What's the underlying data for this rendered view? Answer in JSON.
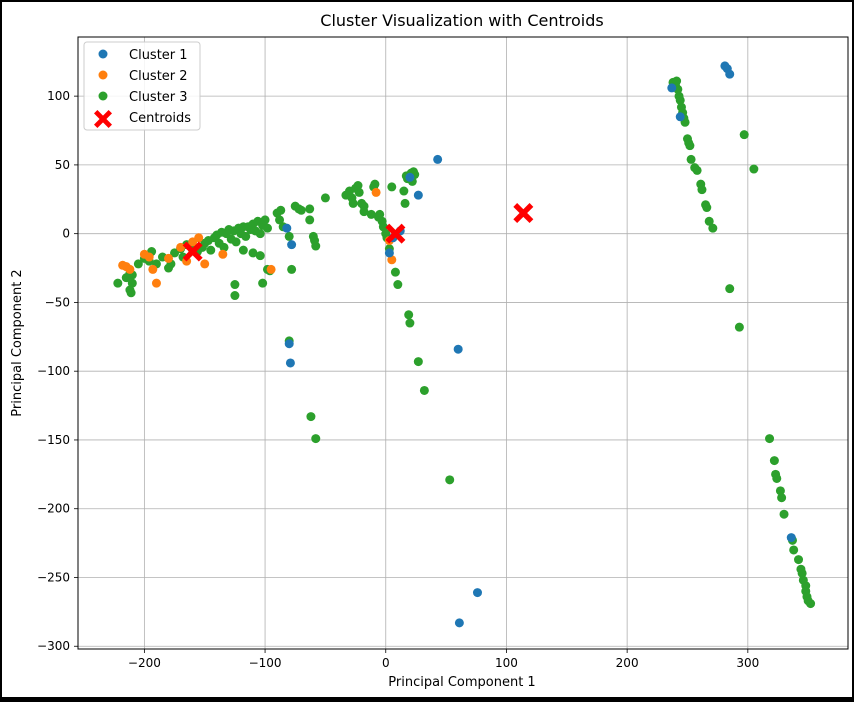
{
  "chart_data": {
    "type": "scatter",
    "title": "Cluster Visualization with Centroids",
    "xlabel": "Principal Component 1",
    "ylabel": "Principal Component 2",
    "xlim": [
      -255,
      383
    ],
    "ylim": [
      -302,
      143
    ],
    "xticks": [
      -200,
      -100,
      0,
      100,
      200,
      300
    ],
    "yticks": [
      100,
      50,
      0,
      -50,
      -100,
      -150,
      -200,
      -250,
      -300
    ],
    "xtick_labels": [
      "−200",
      "−100",
      "0",
      "100",
      "200",
      "300"
    ],
    "ytick_labels": [
      "100",
      "50",
      "0",
      "−50",
      "−100",
      "−150",
      "−200",
      "−250",
      "−300"
    ],
    "grid": true,
    "legend_position": "top-left",
    "series": [
      {
        "name": "Cluster 1",
        "color": "#1f77b4",
        "points": [
          [
            -82,
            4
          ],
          [
            -78,
            -8
          ],
          [
            -80,
            -80
          ],
          [
            -79,
            -94
          ],
          [
            3,
            -14
          ],
          [
            6,
            -3
          ],
          [
            12,
            2
          ],
          [
            20,
            41
          ],
          [
            27,
            28
          ],
          [
            43,
            54
          ],
          [
            60,
            -84
          ],
          [
            76,
            -261
          ],
          [
            61,
            -283
          ],
          [
            237,
            106
          ],
          [
            244,
            85
          ],
          [
            281,
            122
          ],
          [
            283,
            120
          ],
          [
            285,
            116
          ],
          [
            336,
            -221
          ]
        ]
      },
      {
        "name": "Cluster 2",
        "color": "#ff7f0e",
        "points": [
          [
            -218,
            -23
          ],
          [
            -215,
            -24
          ],
          [
            -212,
            -26
          ],
          [
            -200,
            -15
          ],
          [
            -196,
            -17
          ],
          [
            -193,
            -26
          ],
          [
            -190,
            -36
          ],
          [
            -180,
            -18
          ],
          [
            -170,
            -10
          ],
          [
            -165,
            -20
          ],
          [
            -160,
            -6
          ],
          [
            -155,
            -3
          ],
          [
            -150,
            -22
          ],
          [
            -135,
            -15
          ],
          [
            -8,
            30
          ],
          [
            3,
            -5
          ],
          [
            5,
            -19
          ],
          [
            -95,
            -26
          ]
        ]
      },
      {
        "name": "Cluster 3",
        "color": "#2ca02c",
        "points": [
          [
            -222,
            -36
          ],
          [
            -215,
            -32
          ],
          [
            -212,
            -29
          ],
          [
            -212,
            -41
          ],
          [
            -211,
            -43
          ],
          [
            -210,
            -36
          ],
          [
            -210,
            -30
          ],
          [
            -205,
            -22
          ],
          [
            -200,
            -18
          ],
          [
            -196,
            -20
          ],
          [
            -194,
            -13
          ],
          [
            -190,
            -22
          ],
          [
            -185,
            -17
          ],
          [
            -180,
            -25
          ],
          [
            -178,
            -22
          ],
          [
            -175,
            -14
          ],
          [
            -170,
            -11
          ],
          [
            -168,
            -17
          ],
          [
            -165,
            -8
          ],
          [
            -160,
            -12
          ],
          [
            -156,
            -13
          ],
          [
            -152,
            -10
          ],
          [
            -150,
            -7
          ],
          [
            -147,
            -5
          ],
          [
            -145,
            -12
          ],
          [
            -142,
            -3
          ],
          [
            -140,
            -1
          ],
          [
            -138,
            -7
          ],
          [
            -136,
            1
          ],
          [
            -134,
            -10
          ],
          [
            -132,
            0
          ],
          [
            -130,
            3
          ],
          [
            -128,
            -4
          ],
          [
            -126,
            2
          ],
          [
            -124,
            -6
          ],
          [
            -122,
            4
          ],
          [
            -120,
            0
          ],
          [
            -118,
            5
          ],
          [
            -116,
            -2
          ],
          [
            -114,
            5
          ],
          [
            -112,
            3
          ],
          [
            -110,
            7
          ],
          [
            -108,
            2
          ],
          [
            -106,
            9
          ],
          [
            -104,
            0
          ],
          [
            -102,
            6
          ],
          [
            -100,
            10
          ],
          [
            -98,
            4
          ],
          [
            -118,
            -12
          ],
          [
            -110,
            -14
          ],
          [
            -104,
            -16
          ],
          [
            -125,
            -37
          ],
          [
            -125,
            -45
          ],
          [
            -102,
            -36
          ],
          [
            -98,
            -26
          ],
          [
            -96,
            -27
          ],
          [
            -90,
            15
          ],
          [
            -87,
            17
          ],
          [
            -88,
            10
          ],
          [
            -85,
            5
          ],
          [
            -80,
            -2
          ],
          [
            -78,
            -26
          ],
          [
            -75,
            20
          ],
          [
            -72,
            18
          ],
          [
            -70,
            17
          ],
          [
            -63,
            18
          ],
          [
            -63,
            10
          ],
          [
            -60,
            -2
          ],
          [
            -59,
            -5
          ],
          [
            -58,
            -9
          ],
          [
            -62,
            -133
          ],
          [
            -58,
            -149
          ],
          [
            -80,
            -78
          ],
          [
            -50,
            26
          ],
          [
            -33,
            28
          ],
          [
            -30,
            31
          ],
          [
            -28,
            26
          ],
          [
            -27,
            22
          ],
          [
            -25,
            33
          ],
          [
            -23,
            35
          ],
          [
            -22,
            30
          ],
          [
            -20,
            22
          ],
          [
            -18,
            16
          ],
          [
            -18,
            20
          ],
          [
            -10,
            34
          ],
          [
            -9,
            36
          ],
          [
            -12,
            14
          ],
          [
            -6,
            12
          ],
          [
            -5,
            14
          ],
          [
            -3,
            9
          ],
          [
            -2,
            5
          ],
          [
            0,
            0
          ],
          [
            1,
            -3
          ],
          [
            3,
            -11
          ],
          [
            5,
            34
          ],
          [
            8,
            -28
          ],
          [
            10,
            -37
          ],
          [
            15,
            31
          ],
          [
            16,
            22
          ],
          [
            17,
            42
          ],
          [
            18,
            40
          ],
          [
            19,
            -59
          ],
          [
            20,
            -65
          ],
          [
            21,
            44
          ],
          [
            22,
            38
          ],
          [
            23,
            45
          ],
          [
            24,
            43
          ],
          [
            27,
            -93
          ],
          [
            32,
            -114
          ],
          [
            53,
            -179
          ],
          [
            238,
            110
          ],
          [
            240,
            108
          ],
          [
            241,
            111
          ],
          [
            242,
            105
          ],
          [
            243,
            100
          ],
          [
            244,
            97
          ],
          [
            245,
            92
          ],
          [
            246,
            88
          ],
          [
            247,
            84
          ],
          [
            248,
            81
          ],
          [
            250,
            69
          ],
          [
            251,
            66
          ],
          [
            252,
            64
          ],
          [
            253,
            54
          ],
          [
            256,
            48
          ],
          [
            258,
            46
          ],
          [
            261,
            36
          ],
          [
            262,
            32
          ],
          [
            265,
            21
          ],
          [
            266,
            19
          ],
          [
            268,
            9
          ],
          [
            271,
            4
          ],
          [
            285,
            -40
          ],
          [
            293,
            -68
          ],
          [
            297,
            72
          ],
          [
            305,
            47
          ],
          [
            318,
            -149
          ],
          [
            322,
            -165
          ],
          [
            323,
            -175
          ],
          [
            324,
            -178
          ],
          [
            327,
            -187
          ],
          [
            328,
            -192
          ],
          [
            330,
            -204
          ],
          [
            337,
            -223
          ],
          [
            338,
            -230
          ],
          [
            342,
            -237
          ],
          [
            344,
            -244
          ],
          [
            345,
            -247
          ],
          [
            346,
            -252
          ],
          [
            348,
            -256
          ],
          [
            348,
            -260
          ],
          [
            349,
            -264
          ],
          [
            350,
            -267
          ],
          [
            352,
            -269
          ]
        ]
      },
      {
        "name": "Centroids",
        "color": "#ff0000",
        "marker": "X",
        "points": [
          [
            -160,
            -13
          ],
          [
            8,
            0
          ],
          [
            114,
            15
          ]
        ]
      }
    ]
  }
}
